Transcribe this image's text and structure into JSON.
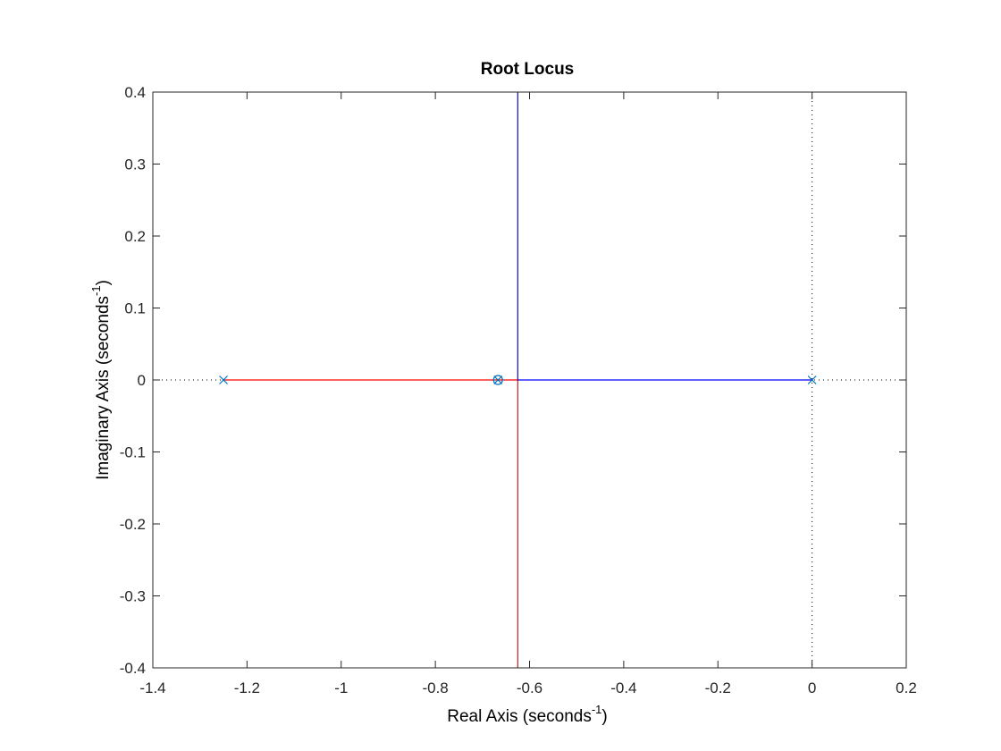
{
  "chart_data": {
    "type": "scatter",
    "title": "Root Locus",
    "xlabel": {
      "text": "Real Axis (seconds",
      "sup": "-1",
      "close": ")"
    },
    "ylabel": {
      "text": "Imaginary Axis (seconds",
      "sup": "-1",
      "close": ")"
    },
    "xlim": [
      -1.4,
      0.2
    ],
    "ylim": [
      -0.4,
      0.4
    ],
    "xticks": [
      -1.4,
      -1.2,
      -1,
      -0.8,
      -0.6,
      -0.4,
      -0.2,
      0,
      0.2
    ],
    "xtick_labels": [
      "-1.4",
      "-1.2",
      "-1",
      "-0.8",
      "-0.6",
      "-0.4",
      "-0.2",
      "0",
      "0.2"
    ],
    "yticks": [
      -0.4,
      -0.3,
      -0.2,
      -0.1,
      0,
      0.1,
      0.2,
      0.3,
      0.4
    ],
    "ytick_labels": [
      "-0.4",
      "-0.3",
      "-0.2",
      "-0.1",
      "0",
      "0.1",
      "0.2",
      "0.3",
      "0.4"
    ],
    "grid": false,
    "series": [
      {
        "color": "#ff0000",
        "x": [
          -1.25,
          -0.625,
          -0.625
        ],
        "y": [
          0,
          0,
          -0.4
        ]
      },
      {
        "color": "#0000ff",
        "x": [
          0,
          -0.625,
          -0.625
        ],
        "y": [
          0,
          0,
          0.4
        ]
      }
    ],
    "poles": [
      {
        "x": -1.25,
        "y": 0
      },
      {
        "x": 0,
        "y": 0
      },
      {
        "x": -0.667,
        "y": 0
      }
    ],
    "zeros": [
      {
        "x": -0.667,
        "y": 0
      }
    ],
    "marker_color": "#0072bd",
    "reference_lines": {
      "real_axis": true,
      "imag_axis": true,
      "style": "dotted"
    }
  }
}
